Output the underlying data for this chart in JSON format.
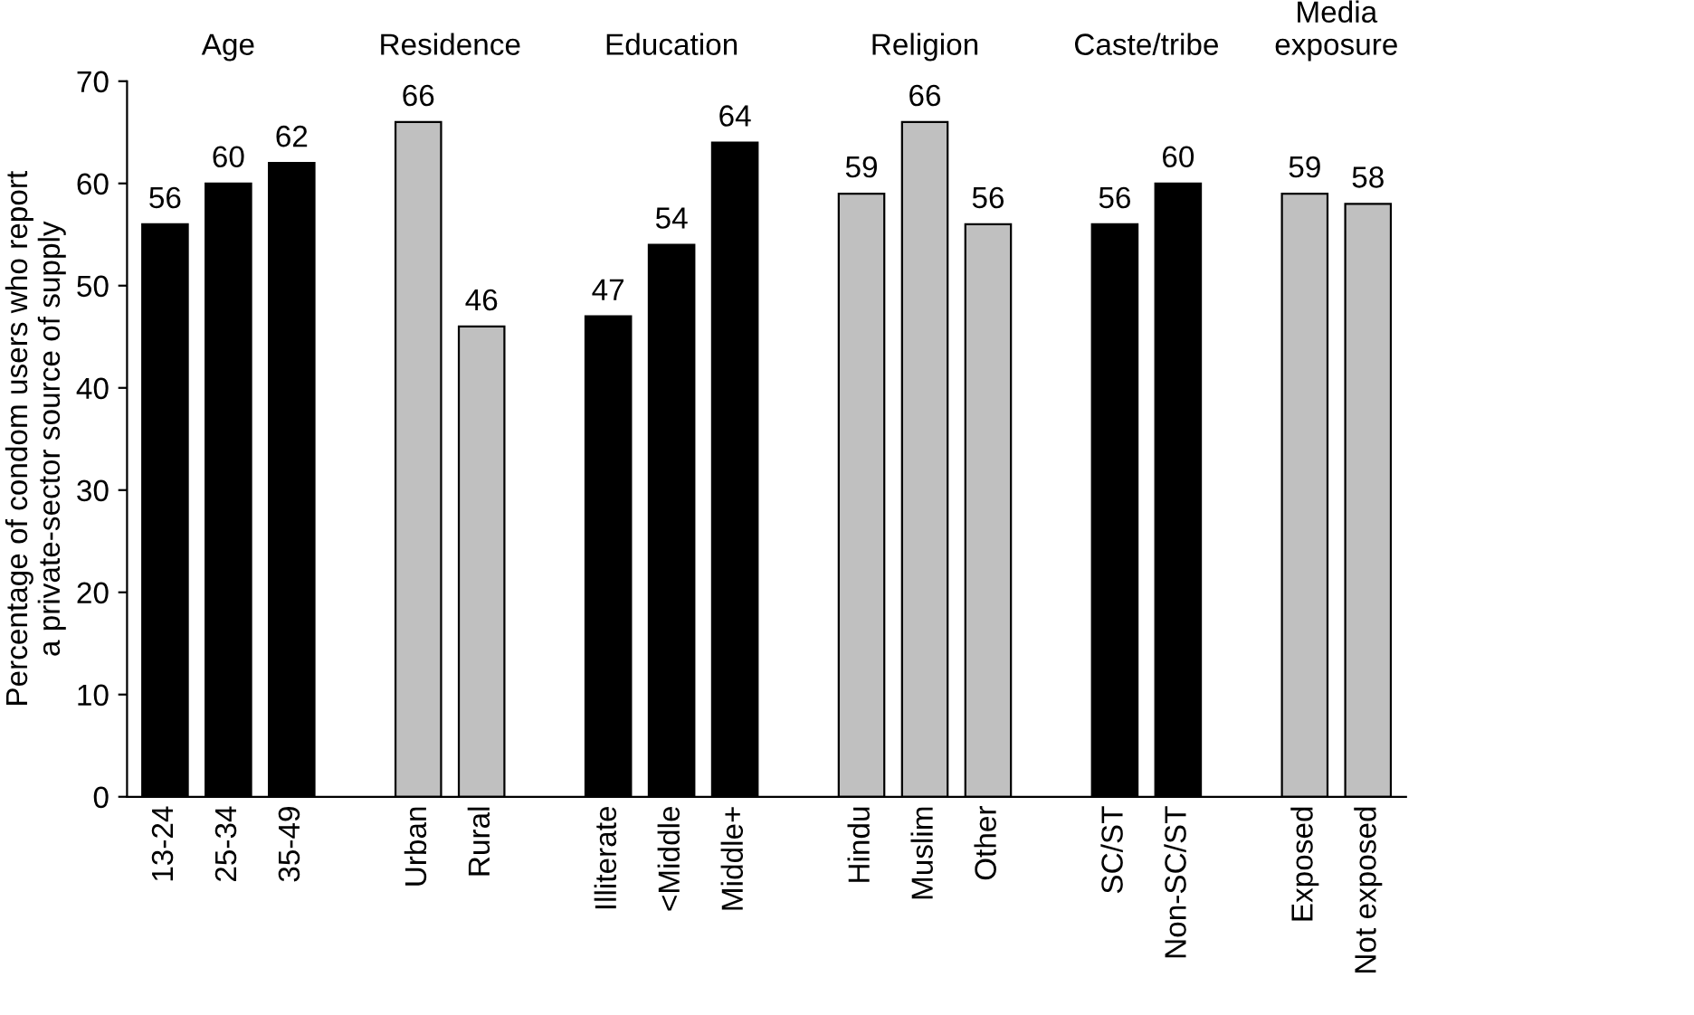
{
  "chart_data": {
    "type": "bar",
    "ylabel": "Percentage of condom users who report\na private-sector source of supply",
    "categories": [
      "13-24",
      "25-34",
      "35-49",
      null,
      "Urban",
      "Rural",
      null,
      "Illiterate",
      "<Middle",
      "Middle+",
      null,
      "Hindu",
      "Muslim",
      "Other",
      null,
      "SC/ST",
      "Non-SC/ST",
      null,
      "Exposed",
      "Not exposed"
    ],
    "values": [
      56,
      60,
      62,
      null,
      66,
      46,
      null,
      47,
      54,
      64,
      null,
      59,
      66,
      56,
      null,
      56,
      60,
      null,
      59,
      58
    ],
    "colors": [
      "#000000",
      "#000000",
      "#000000",
      null,
      "#c0c0c0",
      "#c0c0c0",
      null,
      "#000000",
      "#000000",
      "#000000",
      null,
      "#c0c0c0",
      "#c0c0c0",
      "#c0c0c0",
      null,
      "#000000",
      "#000000",
      null,
      "#c0c0c0",
      "#c0c0c0"
    ],
    "annotations": [
      "Age",
      "Residence",
      "Education",
      "Religion",
      "Caste/tribe",
      "Media\nexposure"
    ],
    "ylim": [
      0,
      70
    ],
    "yticks": [
      0,
      10,
      20,
      30,
      40,
      50,
      60,
      70
    ],
    "data_labels": true,
    "grid": false,
    "legend": false
  }
}
